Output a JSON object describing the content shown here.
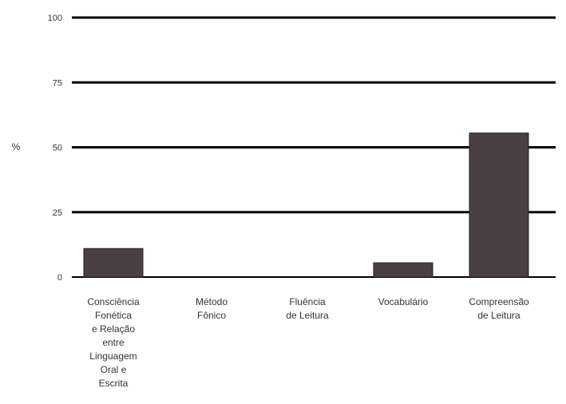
{
  "chart_data": {
    "type": "bar",
    "ylabel": "%",
    "xlabel": "",
    "title": "",
    "ylim": [
      0,
      100
    ],
    "yticks": [
      0,
      25,
      50,
      75,
      100
    ],
    "categories": [
      "Consciência Fonética e Relação entre Linguagem Oral e Escrita",
      "Método Fônico",
      "Fluência de Leitura",
      "Vocabulário",
      "Compreensão de Leitura"
    ],
    "category_lines": [
      [
        "Consciência",
        "Fonética",
        "e Relação",
        "entre",
        "Linguagem",
        "Oral e",
        "Escrita"
      ],
      [
        "Método",
        "Fônico"
      ],
      [
        "Fluência",
        "de Leitura"
      ],
      [
        "Vocabulário"
      ],
      [
        "Compreensão",
        "de Leitura"
      ]
    ],
    "values": [
      11,
      0,
      0,
      5.5,
      55.5
    ],
    "bar_color": "#4a3f42",
    "grid": true,
    "grid_color": "#000000"
  }
}
